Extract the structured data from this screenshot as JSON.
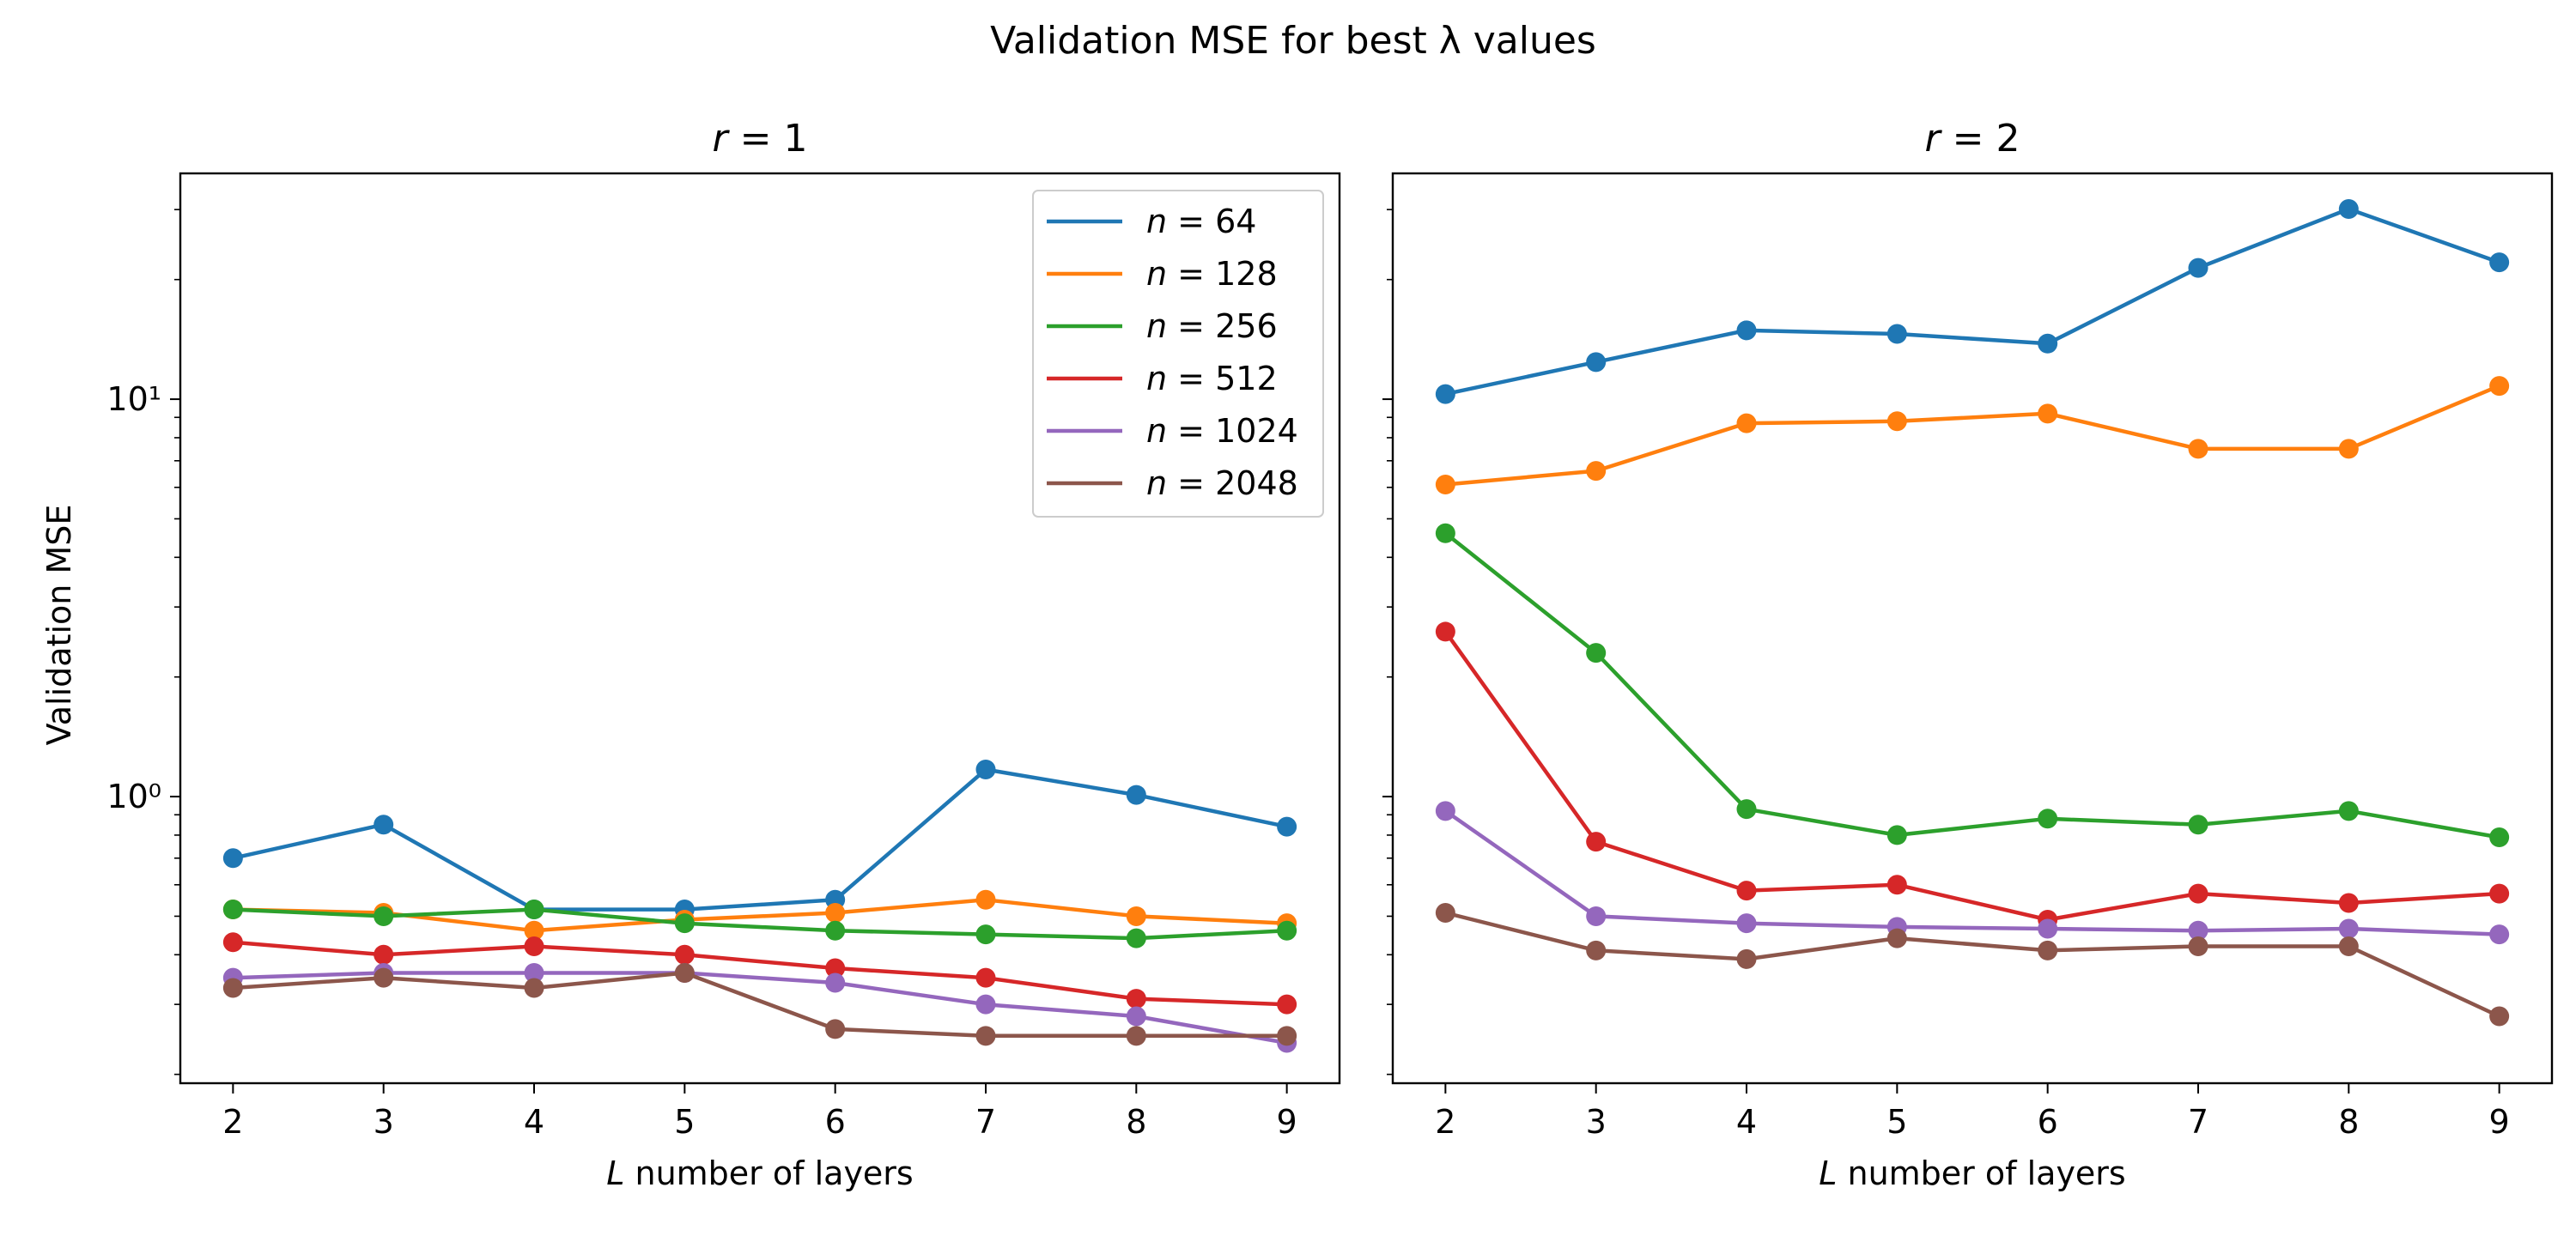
{
  "figure": {
    "title": "Validation MSE for best λ values",
    "ylabel": "Validation MSE"
  },
  "legend": {
    "placement": "top-right",
    "entries": [
      "n = 64",
      "n = 128",
      "n = 256",
      "n = 512",
      "n = 1024",
      "n = 2048"
    ]
  },
  "chart_data": [
    {
      "type": "line",
      "title": "r = 1",
      "xlabel": "L number of layers",
      "ylabel": "Validation MSE",
      "yscale": "log",
      "xlim": [
        1.65,
        9.35
      ],
      "ylim": [
        0.19,
        37
      ],
      "x": [
        2,
        3,
        4,
        5,
        6,
        7,
        8,
        9
      ],
      "xticks": [
        "2",
        "3",
        "4",
        "5",
        "6",
        "7",
        "8",
        "9"
      ],
      "yticks": [
        {
          "value": 1,
          "label": "10⁰"
        },
        {
          "value": 10,
          "label": "10¹"
        }
      ],
      "grid": false,
      "series": [
        {
          "name": "n = 64",
          "color": "#1f77b4",
          "values": [
            0.7,
            0.85,
            0.52,
            0.52,
            0.55,
            1.17,
            1.01,
            0.84
          ]
        },
        {
          "name": "n = 128",
          "color": "#ff7f0e",
          "values": [
            0.52,
            0.51,
            0.46,
            0.49,
            0.51,
            0.55,
            0.5,
            0.48
          ]
        },
        {
          "name": "n = 256",
          "color": "#2ca02c",
          "values": [
            0.52,
            0.5,
            0.52,
            0.48,
            0.46,
            0.45,
            0.44,
            0.46
          ]
        },
        {
          "name": "n = 512",
          "color": "#d62728",
          "values": [
            0.43,
            0.4,
            0.42,
            0.4,
            0.37,
            0.35,
            0.31,
            0.3
          ]
        },
        {
          "name": "n = 1024",
          "color": "#9467bd",
          "values": [
            0.35,
            0.36,
            0.36,
            0.36,
            0.34,
            0.3,
            0.28,
            0.24
          ]
        },
        {
          "name": "n = 2048",
          "color": "#8c564b",
          "values": [
            0.33,
            0.35,
            0.33,
            0.36,
            0.26,
            0.25,
            0.25,
            0.25
          ]
        }
      ]
    },
    {
      "type": "line",
      "title": "r = 2",
      "xlabel": "L number of layers",
      "yscale": "log",
      "xlim": [
        1.65,
        9.35
      ],
      "ylim": [
        0.19,
        37
      ],
      "x": [
        2,
        3,
        4,
        5,
        6,
        7,
        8,
        9
      ],
      "xticks": [
        "2",
        "3",
        "4",
        "5",
        "6",
        "7",
        "8",
        "9"
      ],
      "grid": false,
      "series": [
        {
          "name": "n = 64",
          "color": "#1f77b4",
          "values": [
            10.3,
            12.4,
            14.9,
            14.6,
            13.8,
            21.4,
            30.1,
            22.1
          ]
        },
        {
          "name": "n = 128",
          "color": "#ff7f0e",
          "values": [
            6.1,
            6.6,
            8.7,
            8.8,
            9.2,
            7.5,
            7.5,
            10.8
          ]
        },
        {
          "name": "n = 256",
          "color": "#2ca02c",
          "values": [
            4.6,
            2.3,
            0.93,
            0.8,
            0.88,
            0.85,
            0.92,
            0.79
          ]
        },
        {
          "name": "n = 512",
          "color": "#d62728",
          "values": [
            2.6,
            0.77,
            0.58,
            0.6,
            0.49,
            0.57,
            0.54,
            0.57
          ]
        },
        {
          "name": "n = 1024",
          "color": "#9467bd",
          "values": [
            0.92,
            0.5,
            0.48,
            0.47,
            0.465,
            0.46,
            0.465,
            0.45
          ]
        },
        {
          "name": "n = 2048",
          "color": "#8c564b",
          "values": [
            0.51,
            0.41,
            0.39,
            0.44,
            0.41,
            0.42,
            0.42,
            0.28
          ]
        }
      ]
    }
  ]
}
